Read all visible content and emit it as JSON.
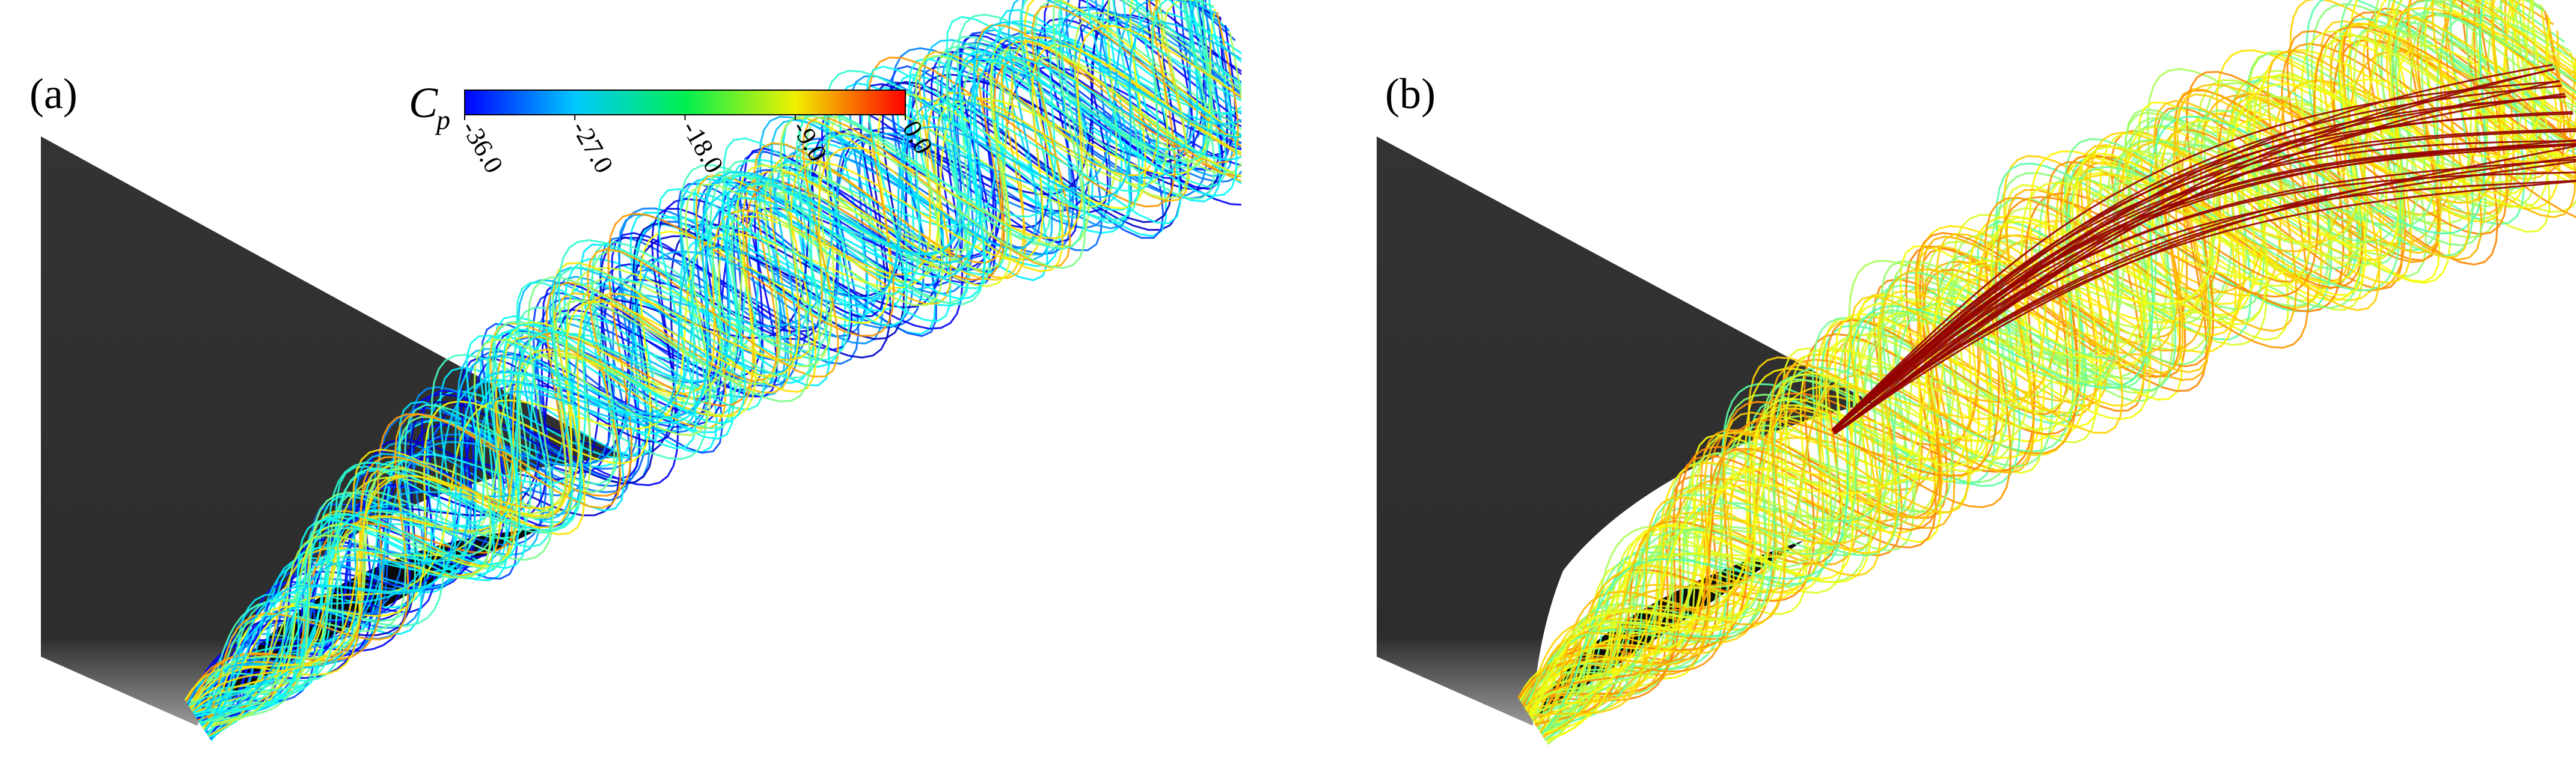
{
  "panels": [
    {
      "label": "(a)"
    },
    {
      "label": "(b)"
    }
  ],
  "colorbar": {
    "title": "C",
    "subscript": "p",
    "lim": [
      -36,
      0
    ],
    "ticks": [
      {
        "value": -36,
        "label": "-36.0"
      },
      {
        "value": -27,
        "label": "-27.0"
      },
      {
        "value": -18,
        "label": "-18.0"
      },
      {
        "value": -9,
        "label": "-9.0"
      },
      {
        "value": 0,
        "label": "0.0"
      }
    ]
  }
}
